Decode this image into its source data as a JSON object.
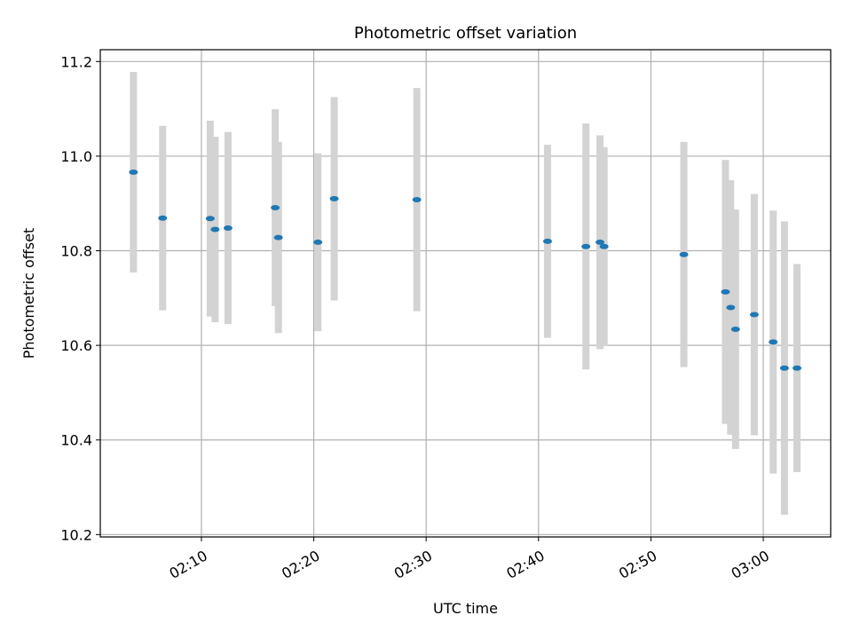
{
  "chart_data": {
    "type": "scatter",
    "title": "Photometric offset variation",
    "xlabel": "UTC time",
    "ylabel": "Photometric offset",
    "xlim": [
      "02:01:00",
      "03:06:00"
    ],
    "ylim": [
      10.195,
      11.225
    ],
    "grid": true,
    "x_ticks": [
      "02:10",
      "02:20",
      "02:30",
      "02:40",
      "02:50",
      "03:00"
    ],
    "y_ticks": [
      "10.2",
      "10.4",
      "10.6",
      "10.8",
      "11.0",
      "11.2"
    ],
    "points_color": "#1f77b4",
    "errorbar_color": "#d3d3d3",
    "points": [
      {
        "x": "02:03:57",
        "y": 10.966,
        "err": 0.212
      },
      {
        "x": "02:06:33",
        "y": 10.869,
        "err": 0.195
      },
      {
        "x": "02:10:47",
        "y": 10.868,
        "err": 0.207
      },
      {
        "x": "02:11:13",
        "y": 10.845,
        "err": 0.196
      },
      {
        "x": "02:12:22",
        "y": 10.848,
        "err": 0.203
      },
      {
        "x": "02:16:34",
        "y": 10.891,
        "err": 0.208
      },
      {
        "x": "02:16:51",
        "y": 10.828,
        "err": 0.202
      },
      {
        "x": "02:20:22",
        "y": 10.818,
        "err": 0.188
      },
      {
        "x": "02:21:49",
        "y": 10.91,
        "err": 0.215
      },
      {
        "x": "02:29:10",
        "y": 10.908,
        "err": 0.236
      },
      {
        "x": "02:40:48",
        "y": 10.82,
        "err": 0.204
      },
      {
        "x": "02:44:13",
        "y": 10.809,
        "err": 0.26
      },
      {
        "x": "02:45:28",
        "y": 10.818,
        "err": 0.226
      },
      {
        "x": "02:45:50",
        "y": 10.809,
        "err": 0.21
      },
      {
        "x": "02:52:56",
        "y": 10.792,
        "err": 0.238
      },
      {
        "x": "02:56:38",
        "y": 10.713,
        "err": 0.279
      },
      {
        "x": "02:57:06",
        "y": 10.68,
        "err": 0.269
      },
      {
        "x": "02:57:32",
        "y": 10.634,
        "err": 0.253
      },
      {
        "x": "02:59:12",
        "y": 10.665,
        "err": 0.255
      },
      {
        "x": "03:00:53",
        "y": 10.607,
        "err": 0.278
      },
      {
        "x": "03:01:53",
        "y": 10.552,
        "err": 0.31
      },
      {
        "x": "03:03:00",
        "y": 10.552,
        "err": 0.22
      }
    ]
  }
}
